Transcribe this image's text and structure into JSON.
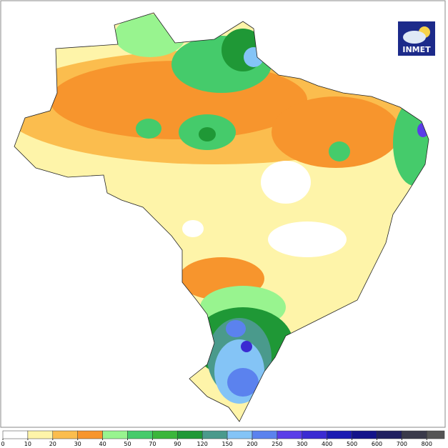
{
  "logo": {
    "text": "INMET"
  },
  "legend": {
    "ticks": [
      0,
      10,
      20,
      30,
      40,
      50,
      70,
      90,
      120,
      150,
      200,
      250,
      300,
      400,
      500,
      600,
      700,
      800
    ],
    "colors": [
      "#ffffff",
      "#fef4a9",
      "#fbbd4e",
      "#f7952d",
      "#98f48f",
      "#45cb6b",
      "#3bb63b",
      "#1f9836",
      "#4a9a8c",
      "#84c4f6",
      "#5b82ee",
      "#5a3de8",
      "#3b2bd2",
      "#1b1bb2",
      "#13138a",
      "#1f1f5f",
      "#3a3a4a",
      "#555555"
    ]
  }
}
